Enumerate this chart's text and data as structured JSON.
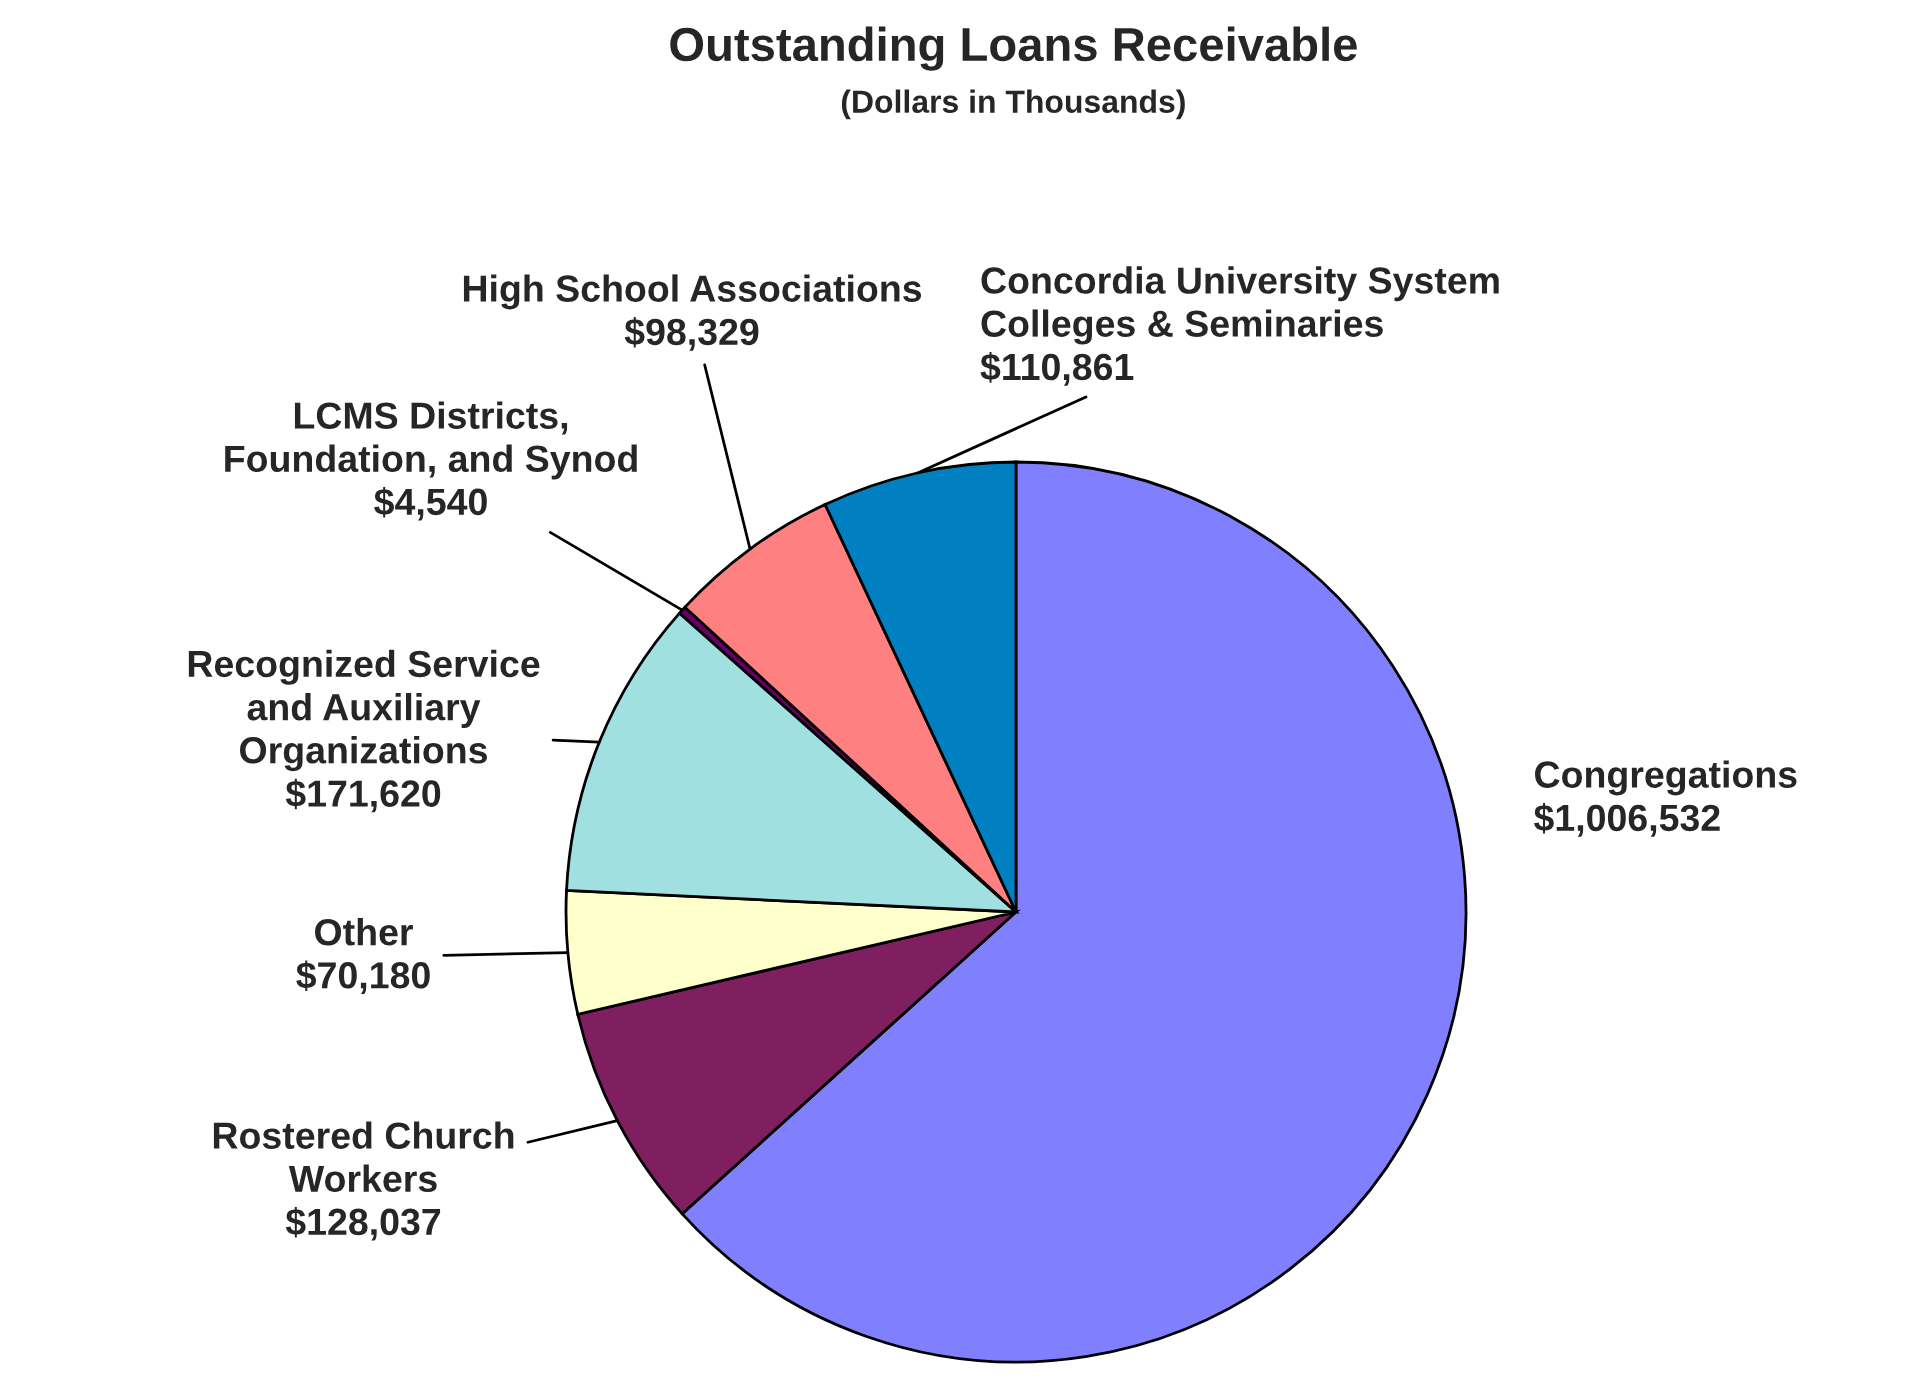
{
  "chart_data": {
    "type": "pie",
    "title": "Outstanding Loans Receivable",
    "subtitle": "(Dollars in Thousands)",
    "categories": [
      "Congregations",
      "Rostered Church\nWorkers",
      "Other",
      "Recognized Service\nand Auxiliary\nOrganizations",
      "LCMS Districts,\nFoundation, and Synod",
      "High School Associations",
      "Concordia University System\nColleges & Seminaries"
    ],
    "values": [
      1006532,
      128037,
      70180,
      171620,
      4540,
      98329,
      110861
    ],
    "value_labels": [
      "$1,006,532",
      "$128,037",
      "$70,180",
      "$171,620",
      "$4,540",
      "$98,329",
      "$110,861"
    ],
    "colors": [
      "#8080ff",
      "#7f1f5f",
      "#ffffcc",
      "#a0e0e0",
      "#660066",
      "#ff8080",
      "#0080c0"
    ]
  }
}
